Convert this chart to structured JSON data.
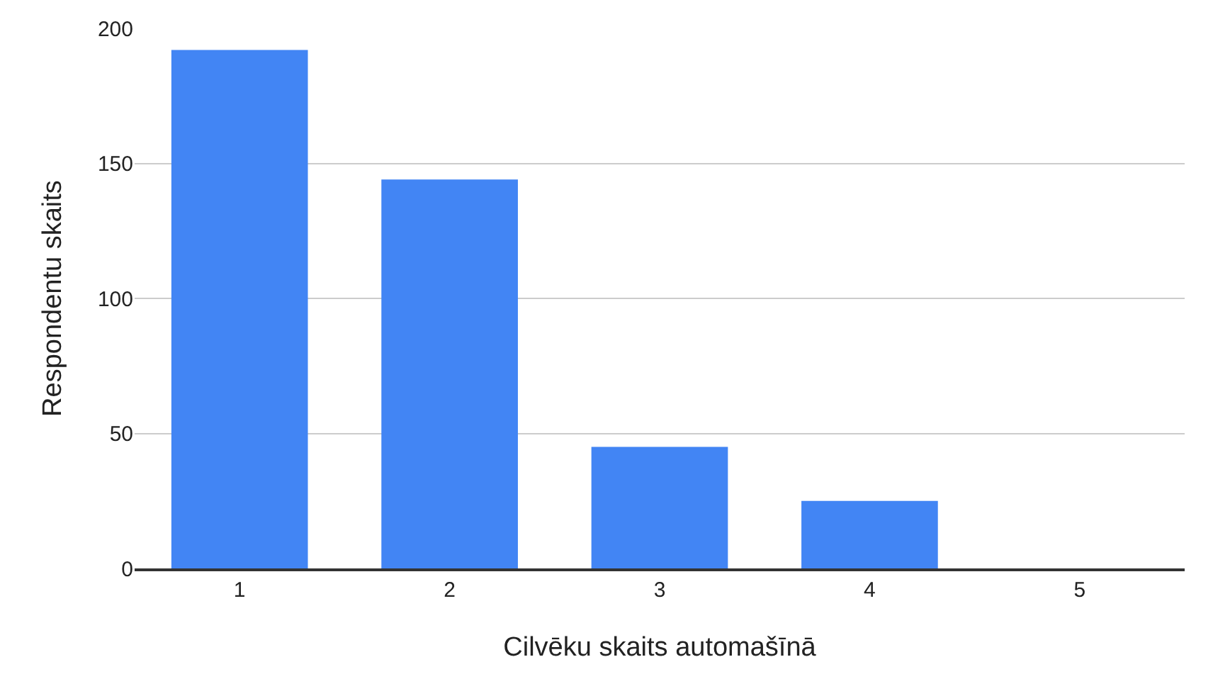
{
  "chart_data": {
    "type": "bar",
    "xlabel": "Cilvēku skaits automašīnā",
    "ylabel": "Respondentu skaits",
    "categories": [
      "1",
      "2",
      "3",
      "4",
      "5"
    ],
    "values": [
      192,
      144,
      45,
      25,
      0
    ],
    "color": "#4285f4",
    "ylim": [
      0,
      200
    ],
    "yticks": [
      0,
      50,
      100,
      150,
      200
    ],
    "grid": "y"
  }
}
